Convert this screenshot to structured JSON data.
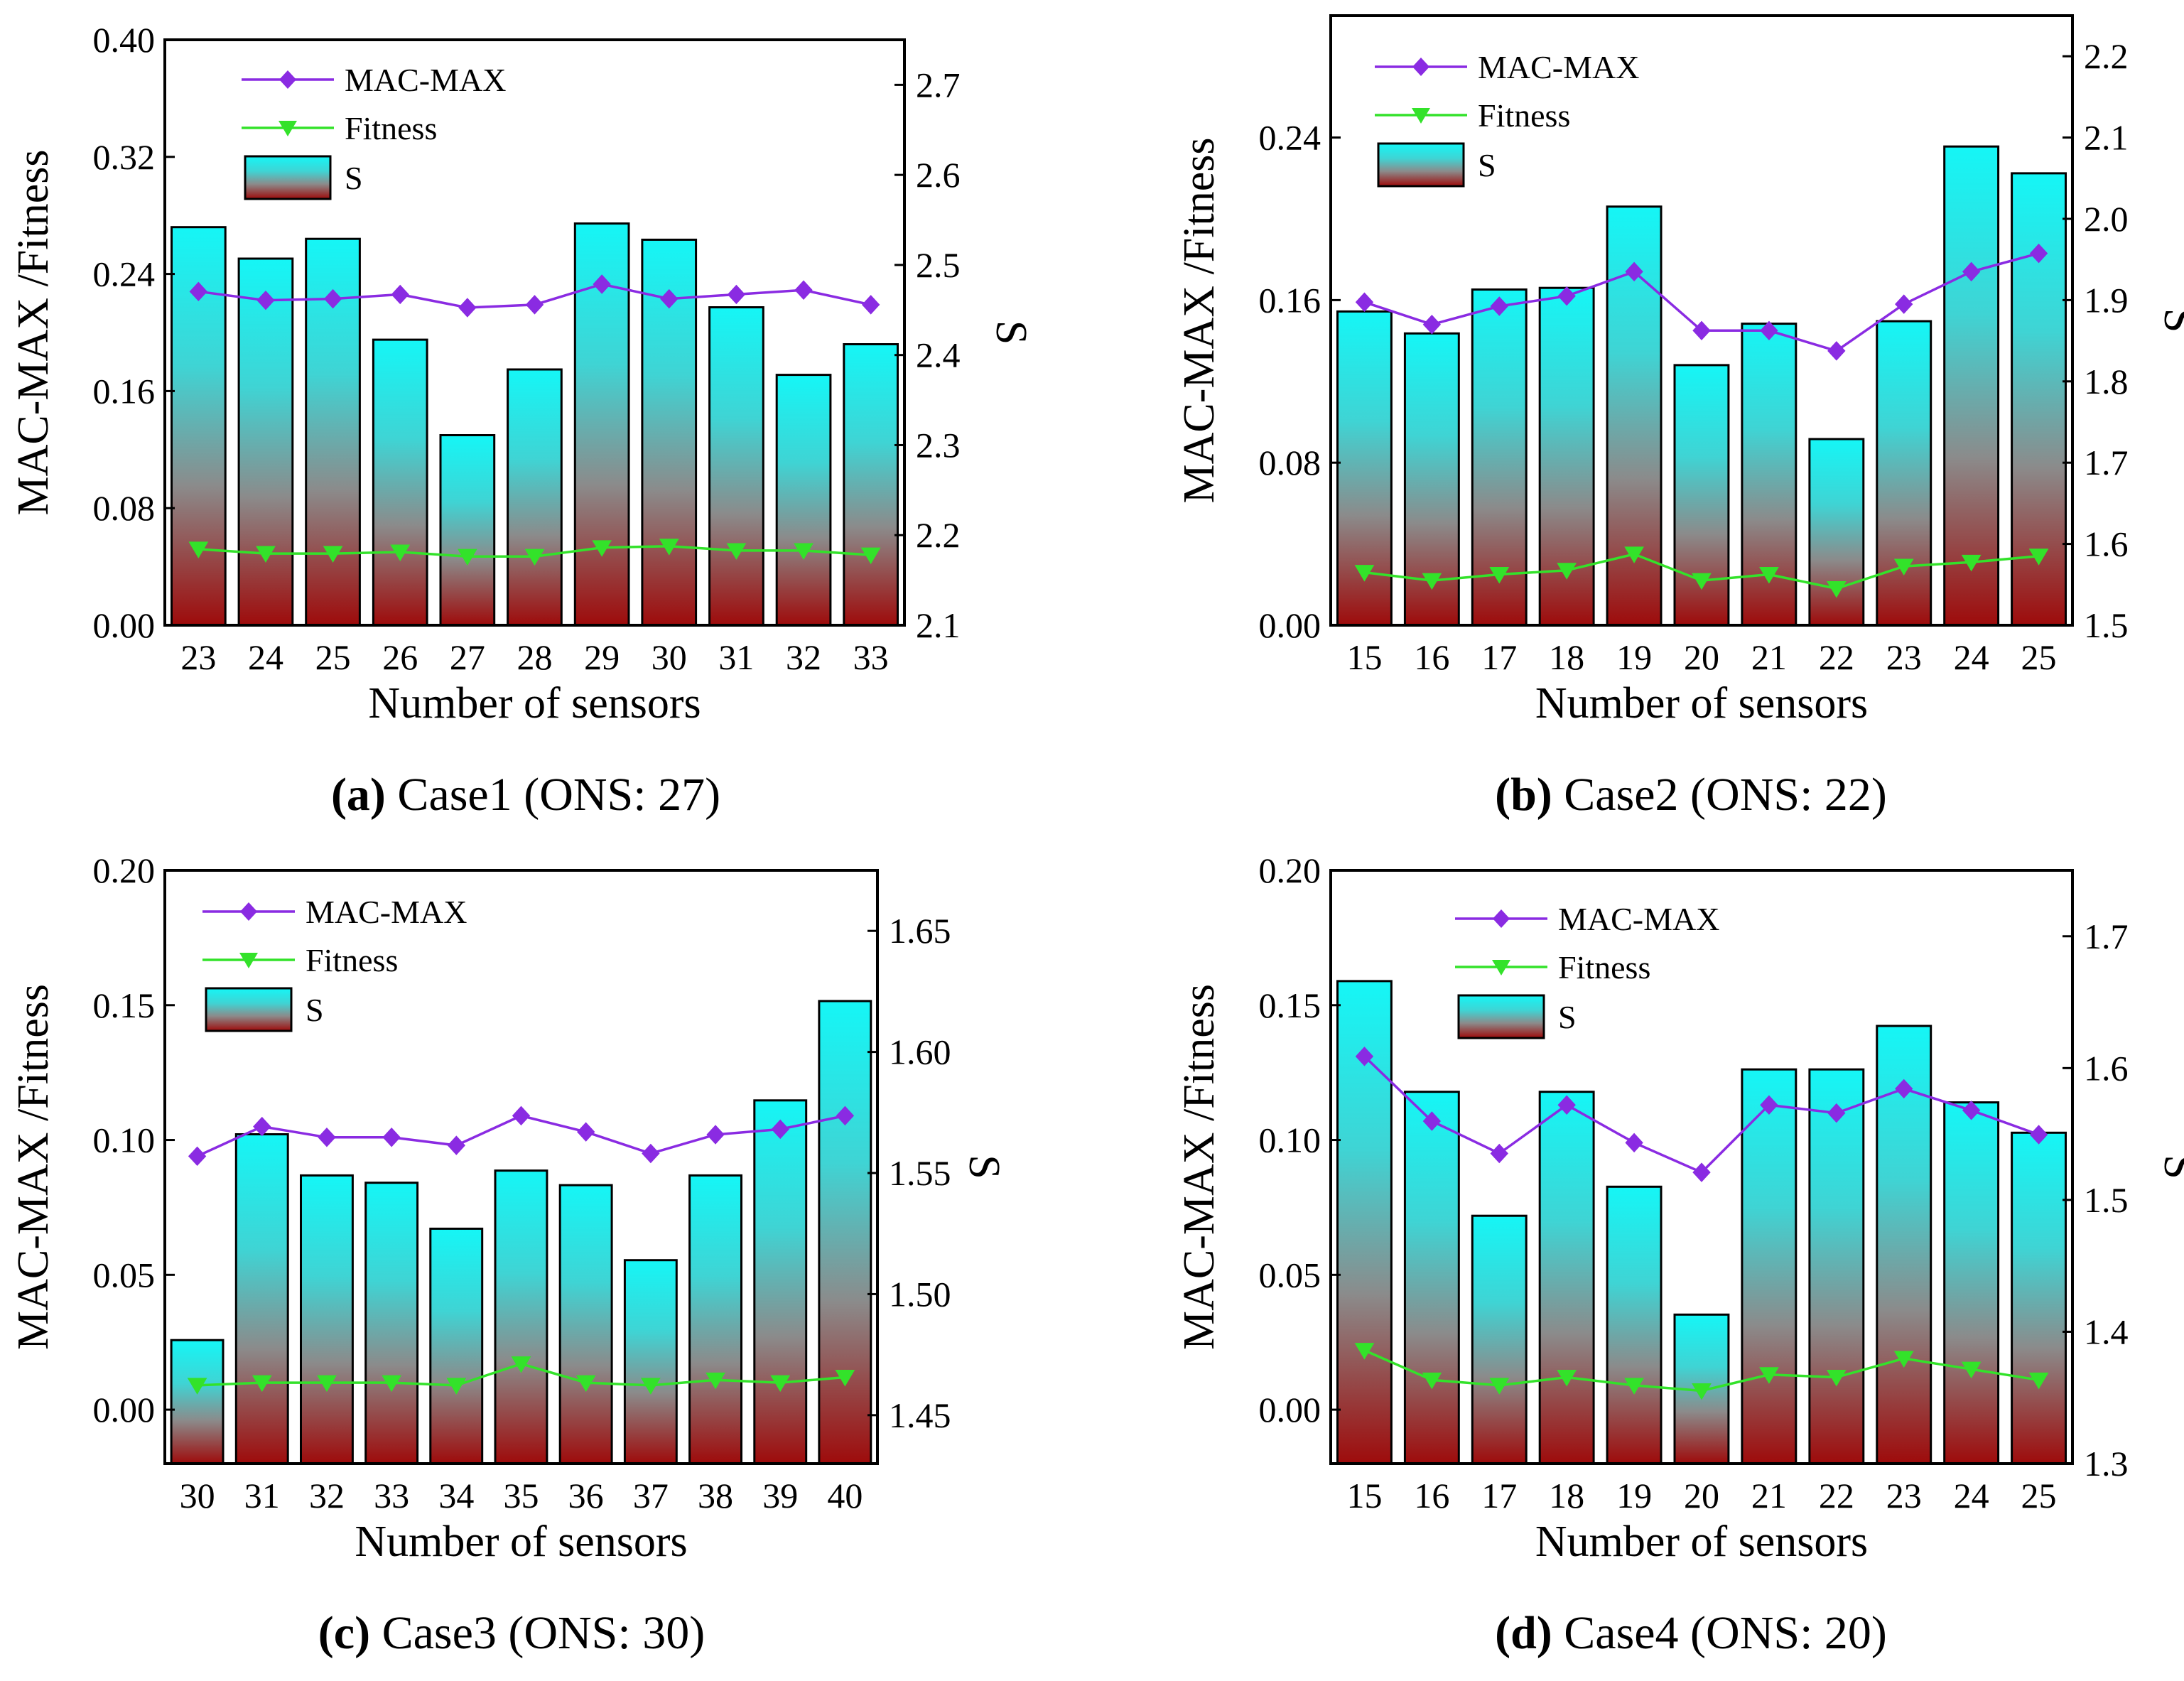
{
  "colors": {
    "mac": "#8a2be2",
    "fitness": "#33e22a",
    "bar_top": "#15f6f6",
    "bar_mid": "#8b8b8b",
    "bar_bottom": "#9e0b0b",
    "axis": "#000000"
  },
  "chart_data": [
    {
      "type": "bar",
      "panel": "a",
      "caption_label": "(a)",
      "caption_text": " Case1 (ONS: 27)",
      "xlabel": "Number of sensors",
      "ylabel": "MAC-MAX /Fitness",
      "y2label": "S",
      "categories": [
        "23",
        "24",
        "25",
        "26",
        "27",
        "28",
        "29",
        "30",
        "31",
        "32",
        "33"
      ],
      "ylim": [
        0,
        0.4
      ],
      "yticks": [
        "0.00",
        "0.08",
        "0.16",
        "0.24",
        "0.32",
        "0.40"
      ],
      "y2lim": [
        2.1,
        2.75
      ],
      "y2ticks": [
        "2.1",
        "2.2",
        "2.3",
        "2.4",
        "2.5",
        "2.6",
        "2.7"
      ],
      "series": [
        {
          "name": "S",
          "axis": "right",
          "kind": "bar",
          "values": [
            2.542,
            2.507,
            2.529,
            2.417,
            2.311,
            2.384,
            2.546,
            2.528,
            2.453,
            2.378,
            2.412
          ]
        },
        {
          "name": "MAC-MAX",
          "axis": "left",
          "kind": "line",
          "values": [
            0.228,
            0.222,
            0.223,
            0.226,
            0.217,
            0.219,
            0.233,
            0.223,
            0.226,
            0.229,
            0.219
          ]
        },
        {
          "name": "Fitness",
          "axis": "left",
          "kind": "line",
          "values": [
            0.052,
            0.049,
            0.049,
            0.05,
            0.047,
            0.047,
            0.053,
            0.054,
            0.051,
            0.051,
            0.048
          ]
        }
      ],
      "legend": [
        "MAC-MAX",
        "Fitness",
        "S"
      ]
    },
    {
      "type": "bar",
      "panel": "b",
      "caption_label": "(b)",
      "caption_text": " Case2 (ONS: 22)",
      "xlabel": "Number of sensors",
      "ylabel": "MAC-MAX /Fitness",
      "y2label": "S",
      "categories": [
        "15",
        "16",
        "17",
        "18",
        "19",
        "20",
        "21",
        "22",
        "23",
        "24",
        "25"
      ],
      "ylim": [
        0,
        0.3
      ],
      "yticks": [
        "0.00",
        "0.08",
        "0.16",
        "0.24"
      ],
      "y2lim": [
        1.5,
        2.25
      ],
      "y2ticks": [
        "1.5",
        "1.6",
        "1.7",
        "1.8",
        "1.9",
        "2.0",
        "2.1",
        "2.2"
      ],
      "series": [
        {
          "name": "S",
          "axis": "right",
          "kind": "bar",
          "values": [
            1.886,
            1.859,
            1.913,
            1.915,
            2.015,
            1.82,
            1.871,
            1.729,
            1.874,
            2.089,
            2.056
          ]
        },
        {
          "name": "MAC-MAX",
          "axis": "left",
          "kind": "line",
          "values": [
            0.159,
            0.148,
            0.157,
            0.162,
            0.174,
            0.145,
            0.145,
            0.135,
            0.158,
            0.174,
            0.183
          ]
        },
        {
          "name": "Fitness",
          "axis": "left",
          "kind": "line",
          "values": [
            0.026,
            0.022,
            0.025,
            0.027,
            0.035,
            0.022,
            0.025,
            0.018,
            0.029,
            0.031,
            0.034
          ]
        }
      ],
      "legend": [
        "MAC-MAX",
        "Fitness",
        "S"
      ]
    },
    {
      "type": "bar",
      "panel": "c",
      "caption_label": "(c)",
      "caption_text": " Case3 (ONS: 30)",
      "xlabel": "Number of sensors",
      "ylabel": "MAC-MAX /Fitness",
      "y2label": "S",
      "categories": [
        "30",
        "31",
        "32",
        "33",
        "34",
        "35",
        "36",
        "37",
        "38",
        "39",
        "40"
      ],
      "ylim": [
        -0.02,
        0.2
      ],
      "yticks": [
        "0.00",
        "0.05",
        "0.10",
        "0.15",
        "0.20"
      ],
      "y2lim": [
        1.43,
        1.675
      ],
      "y2ticks": [
        "1.45",
        "1.50",
        "1.55",
        "1.60",
        "1.65"
      ],
      "series": [
        {
          "name": "S",
          "axis": "right",
          "kind": "bar",
          "values": [
            1.481,
            1.566,
            1.549,
            1.546,
            1.527,
            1.551,
            1.545,
            1.514,
            1.549,
            1.58,
            1.621
          ]
        },
        {
          "name": "MAC-MAX",
          "axis": "left",
          "kind": "line",
          "values": [
            0.094,
            0.105,
            0.101,
            0.101,
            0.098,
            0.109,
            0.103,
            0.095,
            0.102,
            0.104,
            0.109
          ]
        },
        {
          "name": "Fitness",
          "axis": "left",
          "kind": "line",
          "values": [
            0.009,
            0.01,
            0.01,
            0.01,
            0.009,
            0.017,
            0.01,
            0.009,
            0.011,
            0.01,
            0.012
          ]
        }
      ],
      "legend": [
        "MAC-MAX",
        "Fitness",
        "S"
      ]
    },
    {
      "type": "bar",
      "panel": "d",
      "caption_label": "(d)",
      "caption_text": " Case4 (ONS: 20)",
      "xlabel": "Number of sensors",
      "ylabel": "MAC-MAX /Fitness",
      "y2label": "S",
      "categories": [
        "15",
        "16",
        "17",
        "18",
        "19",
        "20",
        "21",
        "22",
        "23",
        "24",
        "25"
      ],
      "ylim": [
        -0.02,
        0.2
      ],
      "yticks": [
        "0.00",
        "0.05",
        "0.10",
        "0.15",
        "0.20"
      ],
      "y2lim": [
        1.3,
        1.75
      ],
      "y2ticks": [
        "1.3",
        "1.4",
        "1.5",
        "1.6",
        "1.7"
      ],
      "series": [
        {
          "name": "S",
          "axis": "right",
          "kind": "bar",
          "values": [
            1.666,
            1.582,
            1.488,
            1.582,
            1.51,
            1.413,
            1.599,
            1.599,
            1.632,
            1.574,
            1.551
          ]
        },
        {
          "name": "MAC-MAX",
          "axis": "left",
          "kind": "line",
          "values": [
            0.131,
            0.107,
            0.095,
            0.113,
            0.099,
            0.088,
            0.113,
            0.11,
            0.119,
            0.111,
            0.102
          ]
        },
        {
          "name": "Fitness",
          "axis": "left",
          "kind": "line",
          "values": [
            0.022,
            0.011,
            0.009,
            0.012,
            0.009,
            0.007,
            0.013,
            0.012,
            0.019,
            0.015,
            0.011
          ]
        }
      ],
      "legend": [
        "MAC-MAX",
        "Fitness",
        "S"
      ]
    }
  ]
}
